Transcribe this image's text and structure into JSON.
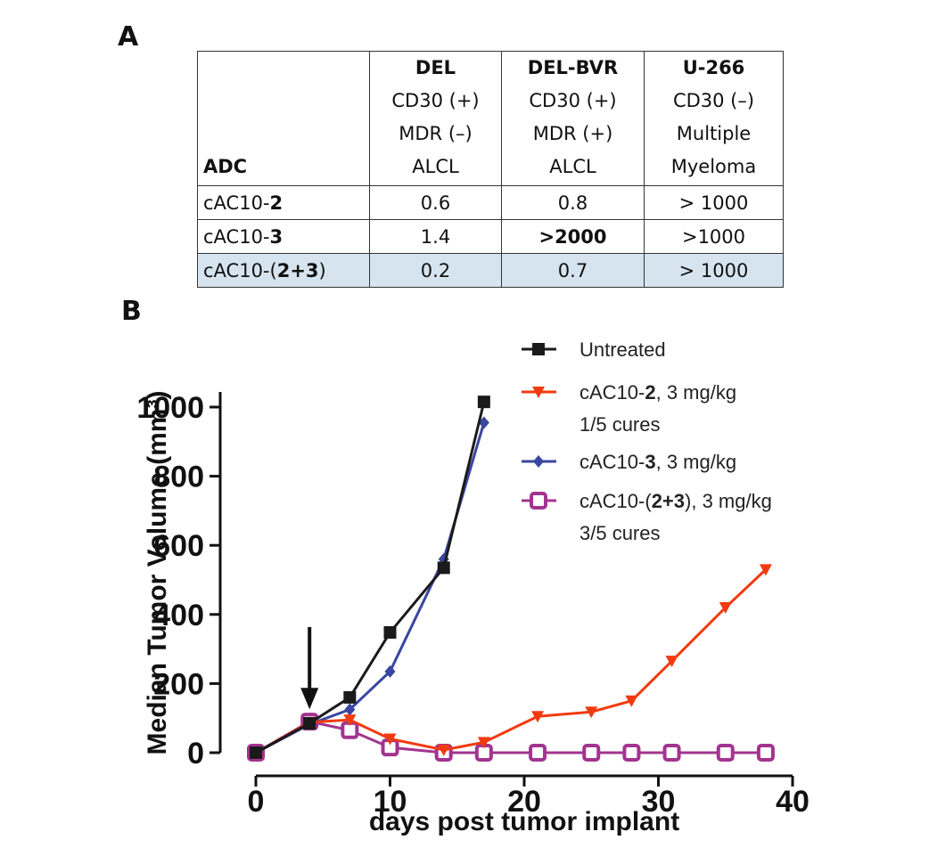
{
  "panel_a": {
    "label": "A",
    "corner_header": "ADC",
    "columns": [
      {
        "name": "DEL",
        "lines": [
          "CD30 (+)",
          "MDR (–)",
          "ALCL"
        ]
      },
      {
        "name": "DEL-BVR",
        "lines": [
          "CD30 (+)",
          "MDR (+)",
          "ALCL"
        ]
      },
      {
        "name": "U-266",
        "lines": [
          "CD30 (–)",
          "Multiple",
          "Myeloma"
        ]
      }
    ],
    "rows": [
      {
        "prefix": "cAC10-",
        "bold": "2",
        "suffix": "",
        "values": [
          "0.6",
          "0.8",
          "> 1000"
        ],
        "bold_cells": [
          false,
          false,
          false
        ],
        "highlight": false
      },
      {
        "prefix": "cAC10-",
        "bold": "3",
        "suffix": "",
        "values": [
          "1.4",
          ">2000",
          ">1000"
        ],
        "bold_cells": [
          false,
          true,
          false
        ],
        "highlight": false
      },
      {
        "prefix": "cAC10-(",
        "bold": "2+3",
        "suffix": ")",
        "values": [
          "0.2",
          "0.7",
          "> 1000"
        ],
        "bold_cells": [
          false,
          false,
          false
        ],
        "highlight": true
      }
    ],
    "highlight_color": "#d5e4ef"
  },
  "panel_b": {
    "label": "B"
  },
  "chart_data": {
    "type": "line",
    "xlabel": "days post tumor implant",
    "ylabel": "Median Tumor Volume (mm³)",
    "xlim": [
      0,
      40
    ],
    "ylim": [
      0,
      1000
    ],
    "xticks": [
      "0",
      "10",
      "20",
      "30",
      "40"
    ],
    "yticks": [
      "0",
      "200",
      "400",
      "600",
      "800",
      "1000"
    ],
    "annotation": {
      "type": "arrow-down",
      "x": 4,
      "y_value": 100
    },
    "legend_position": "top-right",
    "series": [
      {
        "name": "Untreated",
        "name_bold": "",
        "name_suffix": "",
        "note": "",
        "color": "#1a1a1a",
        "marker": "square",
        "x": [
          0,
          4,
          7,
          10,
          14,
          17
        ],
        "y": [
          0,
          85,
          160,
          348,
          535,
          1015
        ]
      },
      {
        "name": "cAC10-",
        "name_bold": "2",
        "name_suffix": ", 3 mg/kg",
        "note": "1/5 cures",
        "color": "#f23a10",
        "marker": "triangle-down",
        "x": [
          0,
          4,
          7,
          10,
          14,
          17,
          21,
          25,
          28,
          31,
          35,
          38
        ],
        "y": [
          0,
          88,
          95,
          40,
          8,
          30,
          105,
          118,
          150,
          265,
          420,
          530
        ]
      },
      {
        "name": "cAC10-",
        "name_bold": "3",
        "name_suffix": ", 3 mg/kg",
        "note": "",
        "color": "#3a46a0",
        "marker": "diamond",
        "x": [
          0,
          4,
          7,
          10,
          14,
          17
        ],
        "y": [
          0,
          82,
          125,
          235,
          560,
          955
        ]
      },
      {
        "name": "cAC10-(",
        "name_bold": "2+3",
        "name_suffix": "), 3 mg/kg",
        "note": "3/5 cures",
        "color": "#a2348f",
        "marker": "open-square",
        "x": [
          0,
          4,
          7,
          10,
          14,
          17,
          21,
          25,
          28,
          31,
          35,
          38
        ],
        "y": [
          0,
          90,
          65,
          15,
          0,
          0,
          0,
          0,
          0,
          0,
          0,
          0
        ]
      }
    ]
  }
}
